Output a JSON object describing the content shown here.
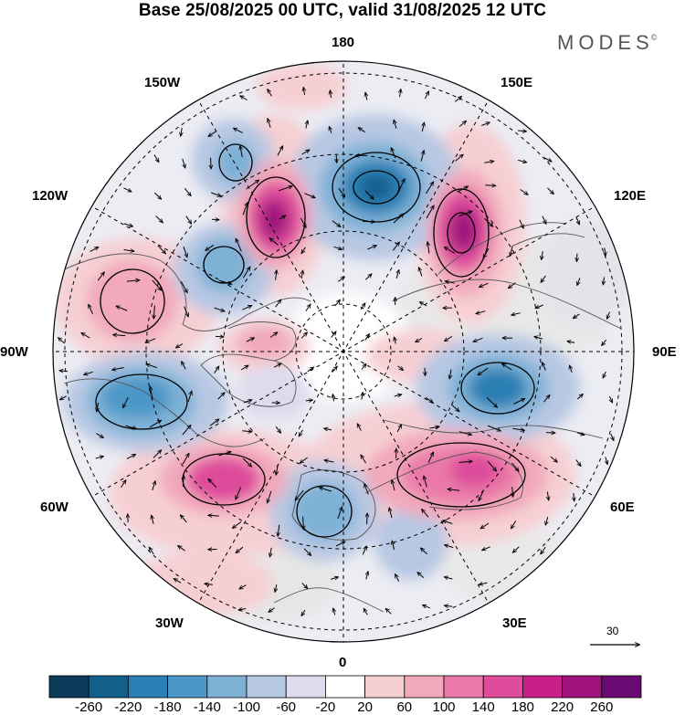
{
  "title": "Base 25/08/2025 00 UTC, valid 31/08/2025 12 UTC",
  "brand": {
    "name": "MODES",
    "mark": "©"
  },
  "longitude_labels": {
    "lon_180": "180",
    "lon_150E": "150E",
    "lon_120E": "120E",
    "lon_90E": "90E",
    "lon_60E": "60E",
    "lon_30E": "30E",
    "lon_0": "0",
    "lon_30W": "30W",
    "lon_60W": "60W",
    "lon_90W": "90W",
    "lon_120W": "120W",
    "lon_150W": "150W"
  },
  "reference_vector": {
    "value": "30"
  },
  "colorbar": {
    "colors": [
      "#0c3b5a",
      "#135f8c",
      "#2a7fb4",
      "#4b97c7",
      "#7eb1d6",
      "#b7c8e3",
      "#dcdcee",
      "#ffffff",
      "#f6cfd3",
      "#f1a9bb",
      "#ea79a9",
      "#de4c9b",
      "#c91f89",
      "#a0127d",
      "#6a0a72"
    ],
    "labels": [
      "-260",
      "-220",
      "-180",
      "-140",
      "-100",
      "-60",
      "-20",
      "20",
      "60",
      "100",
      "140",
      "180",
      "220",
      "260"
    ]
  },
  "colors": {
    "positive_strong": "#a0127d",
    "negative_strong": "#135f8c",
    "neutral": "#efefef"
  }
}
